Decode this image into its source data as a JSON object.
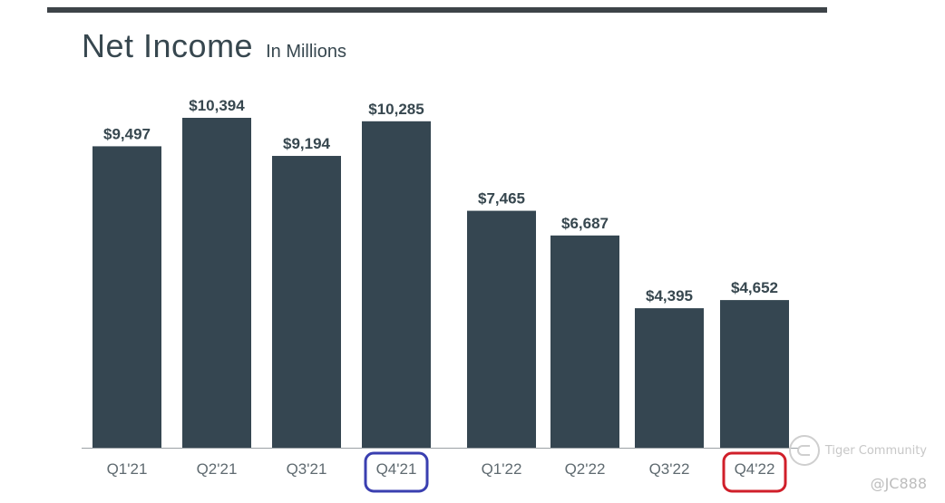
{
  "header": {
    "title": "Net Income",
    "subtitle": "In Millions"
  },
  "chart_data": {
    "type": "bar",
    "title": "Net Income",
    "subtitle": "In Millions",
    "categories": [
      "Q1'21",
      "Q2'21",
      "Q3'21",
      "Q4'21",
      "Q1'22",
      "Q2'22",
      "Q3'22",
      "Q4'22"
    ],
    "values": [
      9497,
      10394,
      9194,
      10285,
      7465,
      6687,
      4395,
      4652
    ],
    "value_labels": [
      "$9,497",
      "$10,394",
      "$9,194",
      "$10,285",
      "$7,465",
      "$6,687",
      "$4,395",
      "$4,652"
    ],
    "ylim": [
      0,
      10394
    ],
    "grid": false,
    "bar_color": "#354651",
    "highlighted_categories": [
      {
        "category": "Q4'21",
        "outline_color": "#3a3fb0"
      },
      {
        "category": "Q4'22",
        "outline_color": "#d01f2a"
      }
    ]
  },
  "watermark": {
    "brand": "Tiger Community",
    "handle": "@JC888"
  }
}
